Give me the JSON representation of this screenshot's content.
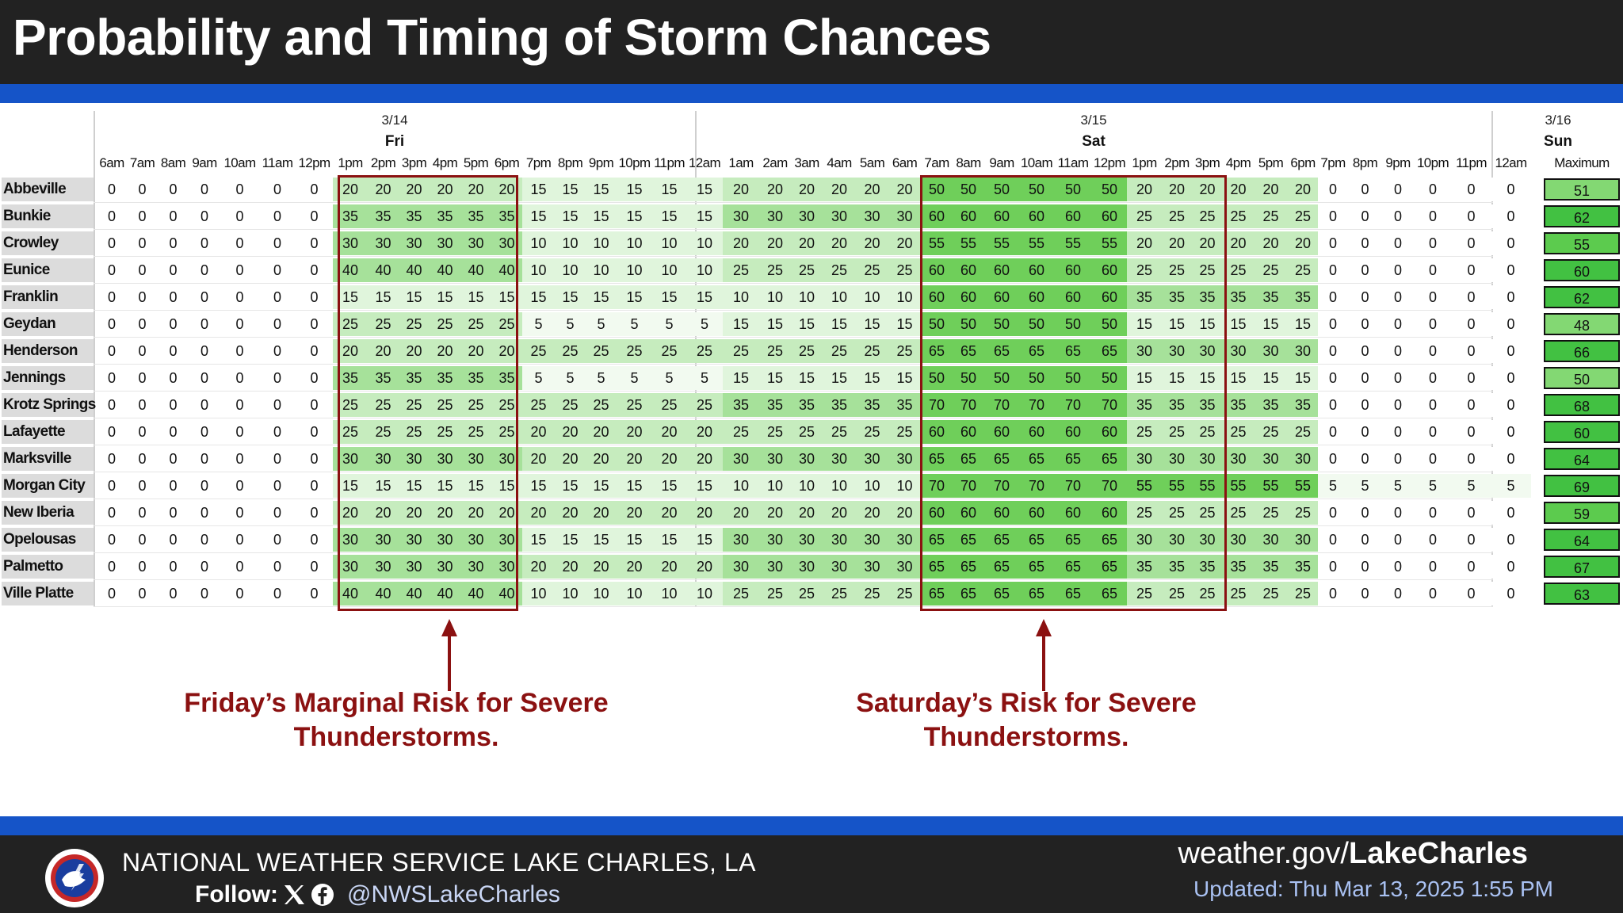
{
  "header": {
    "title": "Probability and Timing of Storm Chances"
  },
  "table": {
    "days": [
      {
        "date": "3/14",
        "day": "Fri"
      },
      {
        "date": "3/15",
        "day": "Sat"
      },
      {
        "date": "3/16",
        "day": "Sun"
      }
    ],
    "hours": [
      "6am",
      "7am",
      "8am",
      "9am",
      "10am",
      "11am",
      "12pm",
      "1pm",
      "2pm",
      "3pm",
      "4pm",
      "5pm",
      "6pm",
      "7pm",
      "8pm",
      "9pm",
      "10pm",
      "11pm",
      "12am",
      "1am",
      "2am",
      "3am",
      "4am",
      "5am",
      "6am",
      "7am",
      "8am",
      "9am",
      "10am",
      "11am",
      "12pm",
      "1pm",
      "2pm",
      "3pm",
      "4pm",
      "5pm",
      "6pm",
      "7pm",
      "8pm",
      "9pm",
      "10pm",
      "11pm",
      "12am"
    ],
    "max_label": "Maximum",
    "rows": [
      {
        "city": "Abbeville",
        "fri_aft": 20,
        "fri_eve": 15,
        "sat_early": 15,
        "sat_night": 20,
        "sat_peak": 50,
        "sat_pm": 20,
        "sat_late": 20,
        "sat_eve": 0,
        "max": 51
      },
      {
        "city": "Bunkie",
        "fri_aft": 35,
        "fri_eve": 15,
        "sat_early": 15,
        "sat_night": 30,
        "sat_peak": 60,
        "sat_pm": 25,
        "sat_late": 25,
        "sat_eve": 0,
        "max": 62
      },
      {
        "city": "Crowley",
        "fri_aft": 30,
        "fri_eve": 10,
        "sat_early": 10,
        "sat_night": 20,
        "sat_peak": 55,
        "sat_pm": 20,
        "sat_late": 20,
        "sat_eve": 0,
        "max": 55
      },
      {
        "city": "Eunice",
        "fri_aft": 40,
        "fri_eve": 10,
        "sat_early": 10,
        "sat_night": 25,
        "sat_peak": 60,
        "sat_pm": 25,
        "sat_late": 25,
        "sat_eve": 0,
        "max": 60
      },
      {
        "city": "Franklin",
        "fri_aft": 15,
        "fri_eve": 15,
        "sat_early": 15,
        "sat_night": 10,
        "sat_peak": 60,
        "sat_pm": 35,
        "sat_late": 35,
        "sat_eve": 0,
        "max": 62
      },
      {
        "city": "Geydan",
        "fri_aft": 25,
        "fri_eve": 5,
        "sat_early": 5,
        "sat_night": 15,
        "sat_peak": 50,
        "sat_pm": 15,
        "sat_late": 15,
        "sat_eve": 0,
        "max": 48
      },
      {
        "city": "Henderson",
        "fri_aft": 20,
        "fri_eve": 25,
        "sat_early": 25,
        "sat_night": 25,
        "sat_peak": 65,
        "sat_pm": 30,
        "sat_late": 30,
        "sat_eve": 0,
        "max": 66
      },
      {
        "city": "Jennings",
        "fri_aft": 35,
        "fri_eve": 5,
        "sat_early": 5,
        "sat_night": 15,
        "sat_peak": 50,
        "sat_pm": 15,
        "sat_late": 15,
        "sat_eve": 0,
        "max": 50
      },
      {
        "city": "Krotz Springs",
        "fri_aft": 25,
        "fri_eve": 25,
        "sat_early": 25,
        "sat_night": 35,
        "sat_peak": 70,
        "sat_pm": 35,
        "sat_late": 35,
        "sat_eve": 0,
        "max": 68
      },
      {
        "city": "Lafayette",
        "fri_aft": 25,
        "fri_eve": 20,
        "sat_early": 20,
        "sat_night": 25,
        "sat_peak": 60,
        "sat_pm": 25,
        "sat_late": 25,
        "sat_eve": 0,
        "max": 60
      },
      {
        "city": "Marksville",
        "fri_aft": 30,
        "fri_eve": 20,
        "sat_early": 20,
        "sat_night": 30,
        "sat_peak": 65,
        "sat_pm": 30,
        "sat_late": 30,
        "sat_eve": 0,
        "max": 64
      },
      {
        "city": "Morgan City",
        "fri_aft": 15,
        "fri_eve": 15,
        "sat_early": 15,
        "sat_night": 10,
        "sat_peak": 70,
        "sat_pm": 55,
        "sat_late": 55,
        "sat_eve": 5,
        "max": 69
      },
      {
        "city": "New Iberia",
        "fri_aft": 20,
        "fri_eve": 20,
        "sat_early": 20,
        "sat_night": 20,
        "sat_peak": 60,
        "sat_pm": 25,
        "sat_late": 25,
        "sat_eve": 0,
        "max": 59
      },
      {
        "city": "Opelousas",
        "fri_aft": 30,
        "fri_eve": 15,
        "sat_early": 15,
        "sat_night": 30,
        "sat_peak": 65,
        "sat_pm": 30,
        "sat_late": 30,
        "sat_eve": 0,
        "max": 64
      },
      {
        "city": "Palmetto",
        "fri_aft": 30,
        "fri_eve": 20,
        "sat_early": 20,
        "sat_night": 30,
        "sat_peak": 65,
        "sat_pm": 35,
        "sat_late": 35,
        "sat_eve": 0,
        "max": 67
      },
      {
        "city": "Ville Platte",
        "fri_aft": 40,
        "fri_eve": 10,
        "sat_early": 10,
        "sat_night": 25,
        "sat_peak": 65,
        "sat_pm": 25,
        "sat_late": 25,
        "sat_eve": 0,
        "max": 63
      }
    ]
  },
  "annotations": {
    "friday": "Friday’s Marginal Risk for Severe Thunderstorms.",
    "saturday": "Saturday’s Risk for Severe Thunderstorms."
  },
  "footer": {
    "org": "NATIONAL WEATHER SERVICE LAKE CHARLES, LA",
    "follow": "Follow:",
    "handle": "@NWSLakeCharles",
    "site_prefix": "weather.gov/",
    "site_bold": "LakeCharles",
    "updated": "Updated: Thu Mar 13, 2025 1:55 PM"
  },
  "colors": {
    "accent_blue": "#1554c8",
    "risk_red": "#8b1111",
    "max_green": "#3dbb3d"
  }
}
